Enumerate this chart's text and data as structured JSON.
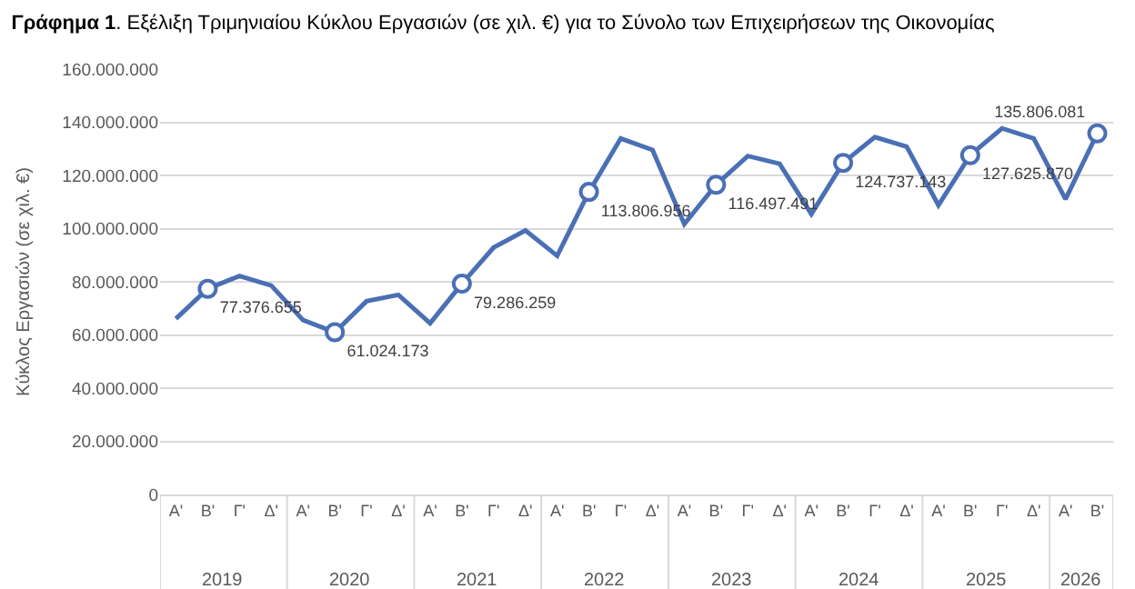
{
  "chart_data": {
    "type": "line",
    "title": "Γράφημα 1. Εξέλιξη Τριμηνιαίου Κύκλου Εργασιών (σε χιλ. €) για το Σύνολο των Επιχειρήσεων της Οικονομίας",
    "ylabel": "Κύκλος Εργασιών (σε χιλ. €)",
    "categories": [
      "Α'",
      "Β'",
      "Γ'",
      "Δ'",
      "Α'",
      "Β'",
      "Γ'",
      "Δ'",
      "Α'",
      "Β'",
      "Γ'",
      "Δ'",
      "Α'",
      "Β'",
      "Γ'",
      "Δ'",
      "Α'",
      "Β'",
      "Γ'",
      "Δ'",
      "Α'",
      "Β'",
      "Γ'",
      "Δ'",
      "Α'",
      "Β'",
      "Γ'",
      "Δ'",
      "Α'",
      "Β'"
    ],
    "annotations": [
      "2019",
      "2020",
      "2021",
      "2022",
      "2023",
      "2024",
      "2025",
      "2026"
    ],
    "series": [
      {
        "color": "#4a6fb5",
        "values": [
          66100000,
          77376655,
          82200000,
          78600000,
          65600000,
          61024173,
          72700000,
          75100000,
          64400000,
          79286259,
          92900000,
          99300000,
          89800000,
          113806956,
          133900000,
          129600000,
          101700000,
          116497491,
          127300000,
          124400000,
          105500000,
          124737143,
          134400000,
          130800000,
          108800000,
          127625870,
          137700000,
          133900000,
          111100000,
          135806081
        ],
        "value_labels": [
          null,
          "77.376.655",
          null,
          null,
          null,
          "61.024.173",
          null,
          null,
          null,
          "79.286.259",
          null,
          null,
          null,
          "113.806.956",
          null,
          null,
          null,
          "116.497.491",
          null,
          null,
          null,
          "124.737.143",
          null,
          null,
          null,
          "127.625.870",
          null,
          null,
          null,
          "135.806.081"
        ]
      }
    ],
    "ylim": [
      0,
      160000000
    ],
    "yticks": [
      {
        "value": 0,
        "label": "0"
      },
      {
        "value": 20000000,
        "label": "20.000.000"
      },
      {
        "value": 40000000,
        "label": "40.000.000"
      },
      {
        "value": 60000000,
        "label": "60.000.000"
      },
      {
        "value": 80000000,
        "label": "80.000.000"
      },
      {
        "value": 100000000,
        "label": "100.000.000"
      },
      {
        "value": 120000000,
        "label": "120.000.000"
      },
      {
        "value": 140000000,
        "label": "140.000.000"
      },
      {
        "value": 160000000,
        "label": "160.000.000"
      }
    ],
    "grid": "y",
    "line_style": "solid",
    "legend": false
  }
}
